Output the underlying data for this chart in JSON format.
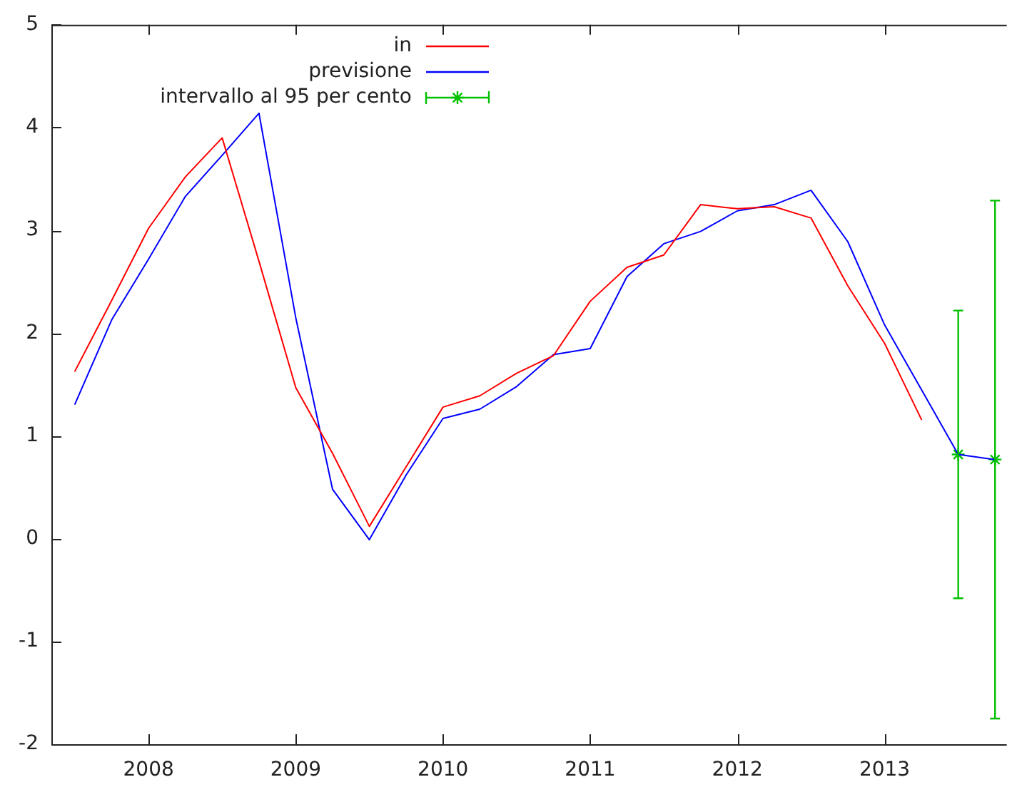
{
  "chart_data": {
    "type": "line",
    "x": [
      2007.5,
      2007.75,
      2008,
      2008.25,
      2008.5,
      2008.75,
      2009,
      2009.25,
      2009.5,
      2009.75,
      2010,
      2010.25,
      2010.5,
      2010.75,
      2011,
      2011.25,
      2011.5,
      2011.75,
      2012,
      2012.25,
      2012.5,
      2012.75,
      2013,
      2013.25,
      2013.5,
      2013.75
    ],
    "xlim": [
      2007.34,
      2013.81
    ],
    "xticks": [
      2008,
      2009,
      2010,
      2011,
      2012,
      2013
    ],
    "ylim": [
      -2,
      5
    ],
    "yticks": [
      -2,
      -1,
      0,
      1,
      2,
      3,
      4,
      5
    ],
    "legend": "top left",
    "series": [
      {
        "name": "in",
        "color": "#ff0000",
        "values": [
          1.63,
          2.32,
          3.02,
          3.52,
          3.9,
          2.7,
          1.47,
          0.83,
          0.12,
          0.7,
          1.28,
          1.39,
          1.61,
          1.78,
          2.31,
          2.64,
          2.76,
          3.25,
          3.21,
          3.23,
          3.12,
          2.46,
          1.9,
          1.16,
          null,
          null
        ]
      },
      {
        "name": "previsione",
        "color": "#0000ff",
        "values": [
          1.31,
          2.13,
          2.72,
          3.33,
          3.73,
          4.14,
          2.15,
          0.48,
          -0.01,
          0.62,
          1.17,
          1.26,
          1.48,
          1.79,
          1.85,
          2.55,
          2.87,
          2.99,
          3.19,
          3.25,
          3.39,
          2.89,
          2.08,
          1.45,
          0.82,
          0.77
        ]
      },
      {
        "name": "intervallo al 95 per cento",
        "type": "scatter",
        "color": "#00c000",
        "marker": "cross",
        "x": [
          2013.5,
          2013.75
        ],
        "values": [
          0.82,
          0.77
        ],
        "errors": [
          1.4,
          2.52
        ]
      }
    ]
  }
}
